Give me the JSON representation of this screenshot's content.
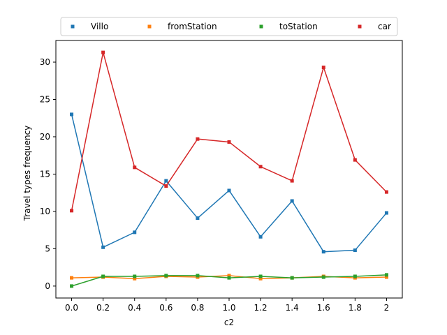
{
  "chart_data": {
    "type": "line",
    "title": "",
    "xlabel": "c2",
    "ylabel": "Travel types frequency",
    "x": [
      0.0,
      0.2,
      0.4,
      0.6,
      0.8,
      1.0,
      1.2,
      1.4,
      1.6,
      1.8,
      2.0
    ],
    "x_tick_labels": [
      "0.0",
      "0.2",
      "0.4",
      "0.6",
      "0.8",
      "1.0",
      "1.2",
      "1.4",
      "1.6",
      "1.8",
      "2"
    ],
    "xlim": [
      -0.1,
      2.1
    ],
    "ylim": [
      -1.6,
      32.9
    ],
    "y_ticks": [
      0,
      5,
      10,
      15,
      20,
      25,
      30
    ],
    "grid": false,
    "legend_position": "top",
    "series": [
      {
        "name": "Villo",
        "color": "#1f77b4",
        "values": [
          23.0,
          5.2,
          7.2,
          14.1,
          9.1,
          12.8,
          6.6,
          11.4,
          4.6,
          4.8,
          9.8
        ]
      },
      {
        "name": "fromStation",
        "color": "#ff7f0e",
        "values": [
          1.1,
          1.2,
          1.0,
          1.3,
          1.2,
          1.4,
          1.0,
          1.1,
          1.3,
          1.1,
          1.2
        ]
      },
      {
        "name": "toStation",
        "color": "#2ca02c",
        "values": [
          0.0,
          1.3,
          1.3,
          1.4,
          1.4,
          1.1,
          1.3,
          1.1,
          1.2,
          1.3,
          1.5
        ]
      },
      {
        "name": "car",
        "color": "#d62728",
        "values": [
          10.1,
          31.3,
          15.9,
          13.4,
          19.7,
          19.3,
          16.0,
          14.1,
          29.3,
          16.9,
          12.6
        ]
      }
    ]
  }
}
